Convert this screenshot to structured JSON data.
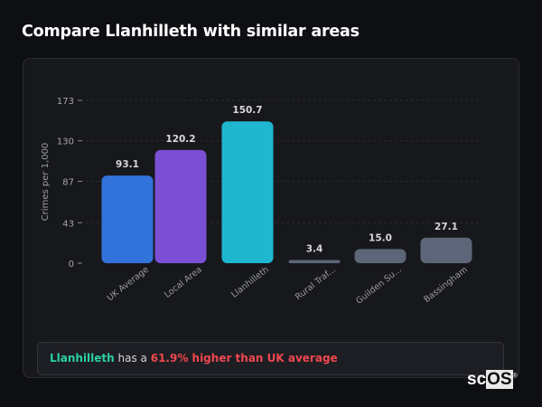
{
  "title": "Compare Llanhilleth with similar areas",
  "chart_data": {
    "type": "bar",
    "ylabel": "Crimes per 1,000",
    "xlabel": "",
    "categories": [
      "UK Average",
      "Local Area",
      "Llanhilleth",
      "Rural Traf...",
      "Guilden Su...",
      "Bassingham"
    ],
    "values": [
      93.1,
      120.2,
      150.7,
      3.4,
      15.0,
      27.1
    ],
    "value_labels": [
      "93.1",
      "120.2",
      "150.7",
      "3.4",
      "15.0",
      "27.1"
    ],
    "colors": [
      "#3272db",
      "#7b4fd4",
      "#1fb7cf",
      "#5d6678",
      "#5d6678",
      "#5d6678"
    ],
    "yticks": [
      0,
      43,
      87,
      130,
      173
    ],
    "ylim": [
      0,
      173
    ],
    "grid": true
  },
  "summary": {
    "name": "Llanhilleth",
    "middle": " has a ",
    "difference": "61.9% higher than UK average"
  },
  "logo": {
    "sc": "sc",
    "os": "OS",
    "mark": "®"
  }
}
